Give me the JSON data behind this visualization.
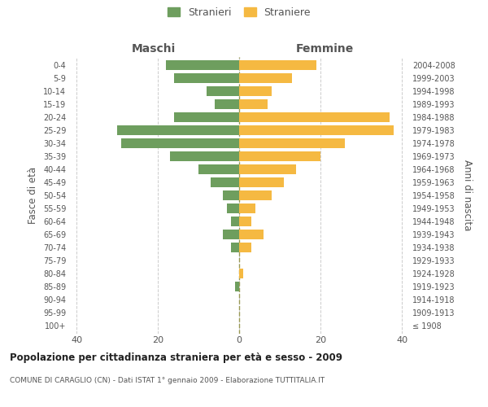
{
  "age_groups": [
    "100+",
    "95-99",
    "90-94",
    "85-89",
    "80-84",
    "75-79",
    "70-74",
    "65-69",
    "60-64",
    "55-59",
    "50-54",
    "45-49",
    "40-44",
    "35-39",
    "30-34",
    "25-29",
    "20-24",
    "15-19",
    "10-14",
    "5-9",
    "0-4"
  ],
  "birth_years": [
    "≤ 1908",
    "1909-1913",
    "1914-1918",
    "1919-1923",
    "1924-1928",
    "1929-1933",
    "1934-1938",
    "1939-1943",
    "1944-1948",
    "1949-1953",
    "1954-1958",
    "1959-1963",
    "1964-1968",
    "1969-1973",
    "1974-1978",
    "1979-1983",
    "1984-1988",
    "1989-1993",
    "1994-1998",
    "1999-2003",
    "2004-2008"
  ],
  "males": [
    0,
    0,
    0,
    1,
    0,
    0,
    2,
    4,
    2,
    3,
    4,
    7,
    10,
    17,
    29,
    30,
    16,
    6,
    8,
    16,
    18
  ],
  "females": [
    0,
    0,
    0,
    0,
    1,
    0,
    3,
    6,
    3,
    4,
    8,
    11,
    14,
    20,
    26,
    38,
    37,
    7,
    8,
    13,
    19
  ],
  "male_color": "#6e9e5e",
  "female_color": "#f5b942",
  "bar_height": 0.75,
  "title": "Popolazione per cittadinanza straniera per età e sesso - 2009",
  "subtitle": "COMUNE DI CARAGLIO (CN) - Dati ISTAT 1° gennaio 2009 - Elaborazione TUTTITALIA.IT",
  "ylabel_left": "Fasce di età",
  "ylabel_right": "Anni di nascita",
  "xlabel_left": "Maschi",
  "xlabel_right": "Femmine",
  "legend_male": "Stranieri",
  "legend_female": "Straniere",
  "xlim": 42,
  "background_color": "#ffffff",
  "grid_color": "#cccccc",
  "text_color": "#555555"
}
